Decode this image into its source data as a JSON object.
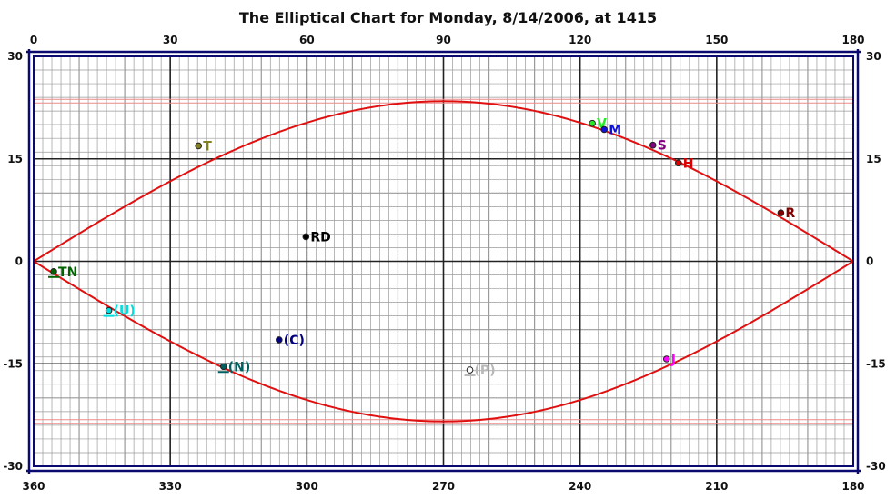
{
  "chart_data": {
    "type": "line",
    "title": "The Elliptical Chart for Monday, 8/14/2006, at 1415",
    "top_axis": {
      "ticks": [
        0,
        30,
        60,
        90,
        120,
        150,
        180
      ],
      "labels": [
        "0",
        "30",
        "60",
        "90",
        "120",
        "150",
        "180"
      ]
    },
    "bottom_axis": {
      "ticks": [
        0,
        30,
        60,
        90,
        120,
        150,
        180
      ],
      "labels": [
        "360",
        "330",
        "300",
        "270",
        "240",
        "210",
        "180"
      ]
    },
    "y_axis": {
      "ticks": [
        30,
        15,
        0,
        -15,
        -30
      ],
      "labels": [
        "30",
        "15",
        "0",
        "-15",
        "-30"
      ]
    },
    "xlim": [
      0,
      180
    ],
    "ylim": [
      -30,
      30
    ],
    "grid": true,
    "ecliptic_amplitude": 23.44,
    "tropic_lines": [
      23.44,
      -23.44
    ],
    "colors": {
      "frame": "#0a0a70",
      "ecliptic": "#e01010",
      "tropic": "#ee8a8a",
      "grid_minor": "#9a9a9a",
      "grid_major": "#222222"
    },
    "points": [
      {
        "label": "V",
        "x": 122.7,
        "y": 20.2,
        "color": "#22ee22",
        "filled": true,
        "underline": false
      },
      {
        "label": "M",
        "x": 125.3,
        "y": 19.3,
        "color": "#1010dd",
        "filled": true,
        "underline": false
      },
      {
        "label": "S",
        "x": 136.0,
        "y": 17.0,
        "color": "#800080",
        "filled": true,
        "underline": false
      },
      {
        "label": "H",
        "x": 141.6,
        "y": 14.4,
        "color": "#dd0000",
        "filled": true,
        "underline": false
      },
      {
        "label": "R",
        "x": 164.1,
        "y": 7.1,
        "color": "#800000",
        "filled": true,
        "underline": false
      },
      {
        "label": "T",
        "x": 36.2,
        "y": 16.9,
        "color": "#808020",
        "filled": true,
        "underline": false
      },
      {
        "label": "RD",
        "x": 59.8,
        "y": 3.6,
        "color": "#000000",
        "filled": true,
        "underline": false
      },
      {
        "label": "TN",
        "x": 4.4,
        "y": -1.5,
        "color": "#006400",
        "filled": true,
        "underline": true
      },
      {
        "label": "(U)",
        "x": 16.5,
        "y": -7.2,
        "color": "#00dddd",
        "filled": true,
        "underline": true
      },
      {
        "label": "(C)",
        "x": 53.9,
        "y": -11.5,
        "color": "#000080",
        "filled": true,
        "underline": false
      },
      {
        "label": "(N)",
        "x": 41.7,
        "y": -15.4,
        "color": "#006060",
        "filled": true,
        "underline": true
      },
      {
        "label": "(P)",
        "x": 95.8,
        "y": -15.9,
        "color": "#b8b8b8",
        "filled": false,
        "underline": true
      },
      {
        "label": "J",
        "x": 139.0,
        "y": -14.3,
        "color": "#ff00ff",
        "filled": true,
        "underline": false
      }
    ]
  }
}
